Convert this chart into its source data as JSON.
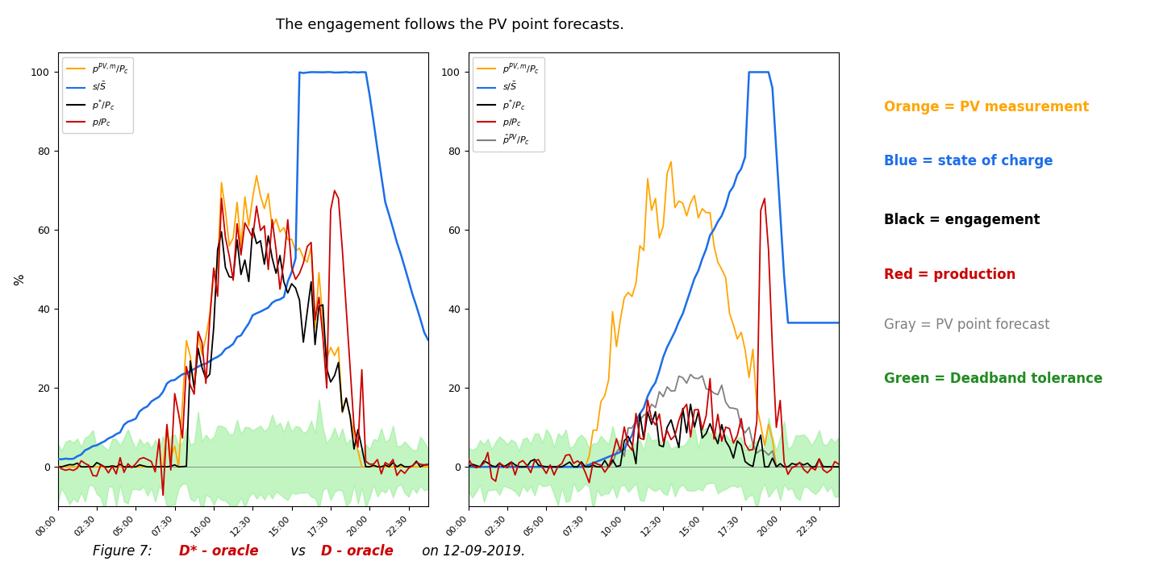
{
  "title": "The engagement follows the PV point forecasts.",
  "figsize": [
    14.32,
    7.22
  ],
  "dpi": 100,
  "ylabel": "%",
  "ylim": [
    -10,
    105
  ],
  "yticks": [
    0,
    20,
    40,
    60,
    80,
    100
  ],
  "orange_color": "#FFA500",
  "blue_color": "#1C6EE8",
  "black_color": "#000000",
  "red_color": "#CC0000",
  "gray_color": "#808080",
  "green_fill": "#90EE90",
  "green_fill_alpha": 0.55,
  "legend_right": [
    {
      "text": "Orange = PV measurement",
      "color": "#FFA500",
      "bold": true
    },
    {
      "text": "Blue = state of charge",
      "color": "#1C6EE8",
      "bold": true
    },
    {
      "text": "Black = engagement",
      "color": "#000000",
      "bold": true
    },
    {
      "text": "Red = production",
      "color": "#CC0000",
      "bold": true
    },
    {
      "text": "Gray = PV point forecast",
      "color": "#808080",
      "bold": false
    },
    {
      "text": "Green = Deadband tolerance",
      "color": "#228B22",
      "bold": true
    }
  ]
}
